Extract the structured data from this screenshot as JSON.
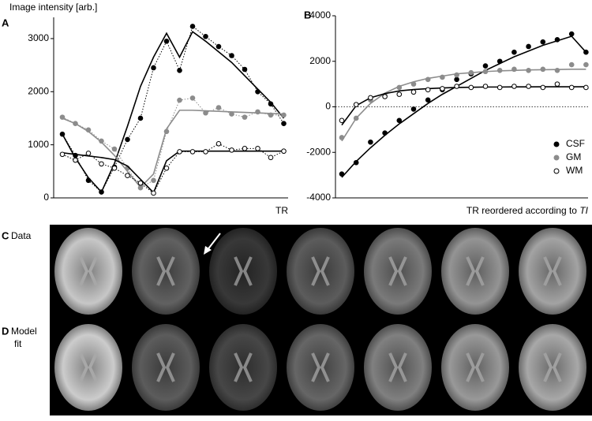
{
  "chart_data": [
    {
      "type": "line",
      "panel": "A",
      "ylabel": "Image intensity [arb.]",
      "xlabel": "TR",
      "ylim": [
        0,
        3400
      ],
      "yticks": [
        0,
        1000,
        2000,
        3000
      ],
      "connect_points": true,
      "series": [
        {
          "color": "#000000",
          "fill": "#000000",
          "values": [
            1200,
            800,
            330,
            110,
            580,
            1100,
            1500,
            2450,
            2950,
            2400,
            3230,
            3040,
            2850,
            2680,
            2420,
            2000,
            1770,
            1400
          ],
          "fit": [
            1200,
            750,
            380,
            110,
            650,
            1350,
            2100,
            2650,
            3100,
            2650,
            3130,
            2950,
            2750,
            2550,
            2300,
            2050,
            1800,
            1500
          ]
        },
        {
          "color": "#8c8c8c",
          "fill": "#8c8c8c",
          "values": [
            1520,
            1400,
            1280,
            1070,
            920,
            560,
            190,
            330,
            1250,
            1840,
            1880,
            1600,
            1700,
            1580,
            1520,
            1620,
            1560,
            1560
          ],
          "fit": [
            1500,
            1400,
            1250,
            1050,
            800,
            500,
            200,
            450,
            1300,
            1650,
            1650,
            1640,
            1630,
            1620,
            1610,
            1600,
            1590,
            1580
          ]
        },
        {
          "color": "#000000",
          "fill": "#ffffff",
          "values": [
            820,
            710,
            840,
            640,
            560,
            420,
            280,
            90,
            560,
            870,
            870,
            870,
            1020,
            900,
            930,
            930,
            760,
            880
          ],
          "fit": [
            850,
            820,
            790,
            760,
            720,
            600,
            350,
            100,
            700,
            880,
            880,
            880,
            880,
            880,
            880,
            880,
            880,
            880
          ]
        }
      ]
    },
    {
      "type": "line",
      "panel": "B",
      "xlabel": "TR reordered according to",
      "xlabel_italic": "TI",
      "ylim": [
        -4000,
        4000
      ],
      "yticks": [
        -4000,
        -2000,
        0,
        2000,
        4000
      ],
      "connect_points": false,
      "zero_line": true,
      "legend": "lower right",
      "series": [
        {
          "name": "CSF",
          "color": "#000000",
          "fill": "#000000",
          "values": [
            -2950,
            -2450,
            -1550,
            -1150,
            -600,
            -100,
            300,
            750,
            1200,
            1450,
            1800,
            2000,
            2400,
            2650,
            2850,
            2950,
            3200,
            2400
          ],
          "fit": [
            -3100,
            -2400,
            -1800,
            -1250,
            -750,
            -300,
            150,
            550,
            900,
            1250,
            1600,
            1900,
            2200,
            2450,
            2700,
            2900,
            3100,
            2400
          ]
        },
        {
          "name": "GM",
          "color": "#8c8c8c",
          "fill": "#8c8c8c",
          "values": [
            -1350,
            -500,
            300,
            500,
            850,
            1000,
            1200,
            1300,
            1400,
            1500,
            1550,
            1600,
            1650,
            1600,
            1650,
            1600,
            1850,
            1850
          ],
          "fit": [
            -1500,
            -500,
            150,
            600,
            900,
            1100,
            1250,
            1350,
            1450,
            1500,
            1550,
            1580,
            1600,
            1620,
            1630,
            1640,
            1650,
            1650
          ]
        },
        {
          "name": "WM",
          "color": "#000000",
          "fill": "#ffffff",
          "values": [
            -600,
            100,
            400,
            450,
            550,
            650,
            750,
            800,
            900,
            850,
            900,
            850,
            900,
            900,
            850,
            1000,
            850,
            850
          ],
          "fit": [
            -800,
            50,
            400,
            580,
            700,
            760,
            800,
            830,
            850,
            860,
            870,
            870,
            875,
            875,
            880,
            880,
            880,
            880
          ]
        }
      ]
    }
  ],
  "images": {
    "panel_c": "C",
    "data_label": "Data",
    "panel_d": "D",
    "model_label_1": "Model",
    "model_label_2": "fit"
  }
}
